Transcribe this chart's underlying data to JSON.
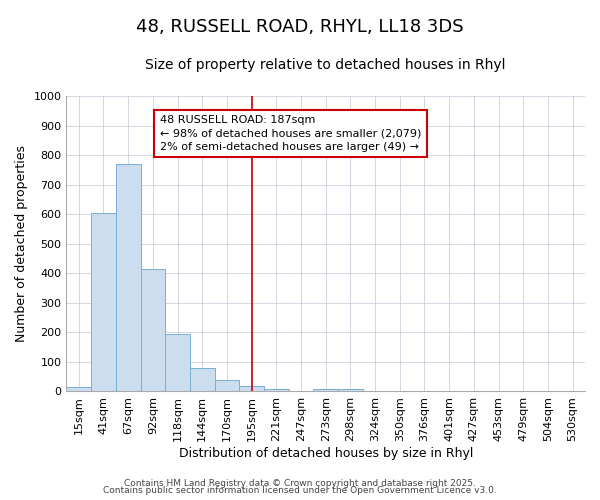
{
  "title": "48, RUSSELL ROAD, RHYL, LL18 3DS",
  "subtitle": "Size of property relative to detached houses in Rhyl",
  "xlabel": "Distribution of detached houses by size in Rhyl",
  "ylabel": "Number of detached properties",
  "bar_color": "#ccddf0",
  "bar_edge_color": "#7aafd4",
  "categories": [
    "15sqm",
    "41sqm",
    "67sqm",
    "92sqm",
    "118sqm",
    "144sqm",
    "170sqm",
    "195sqm",
    "221sqm",
    "247sqm",
    "273sqm",
    "298sqm",
    "324sqm",
    "350sqm",
    "376sqm",
    "401sqm",
    "427sqm",
    "453sqm",
    "479sqm",
    "504sqm",
    "530sqm"
  ],
  "values": [
    15,
    605,
    770,
    415,
    195,
    78,
    40,
    20,
    10,
    0,
    10,
    10,
    0,
    0,
    0,
    0,
    0,
    0,
    0,
    0,
    0
  ],
  "vline_x_index": 7,
  "vline_color": "#cc0000",
  "annotation_text": "48 RUSSELL ROAD: 187sqm\n← 98% of detached houses are smaller (2,079)\n2% of semi-detached houses are larger (49) →",
  "annotation_box_facecolor": "#ffffff",
  "annotation_box_edgecolor": "#cc0000",
  "ylim": [
    0,
    1000
  ],
  "yticks": [
    0,
    100,
    200,
    300,
    400,
    500,
    600,
    700,
    800,
    900,
    1000
  ],
  "footer_line1": "Contains HM Land Registry data © Crown copyright and database right 2025.",
  "footer_line2": "Contains public sector information licensed under the Open Government Licence v3.0.",
  "bg_color": "#ffffff",
  "plot_bg_color": "#ffffff",
  "grid_color": "#c0c8d8",
  "title_fontsize": 13,
  "subtitle_fontsize": 10,
  "ylabel_fontsize": 9,
  "xlabel_fontsize": 9,
  "tick_fontsize": 8,
  "footer_fontsize": 6.5,
  "ann_fontsize": 8
}
